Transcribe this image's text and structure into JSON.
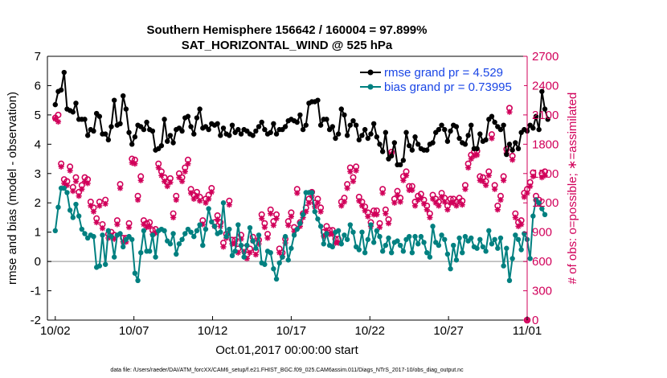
{
  "chart_data": {
    "type": "line",
    "title_line1": "Southern Hemisphere 156642 / 160004 = 97.899%",
    "title_line2": "SAT_HORIZONTAL_WIND @ 525 hPa",
    "xlabel": "Oct.01,2017 00:00:00 start",
    "ylabel": "rmse and bias (model - observation)",
    "y2label": "# of obs: o=possible; ∗=assimilated",
    "xlim": [
      0.5,
      31
    ],
    "ylim": [
      -2,
      7
    ],
    "y2lim": [
      0,
      2700
    ],
    "xticks": [
      {
        "pos": 1,
        "label": "10/02"
      },
      {
        "pos": 6,
        "label": "10/07"
      },
      {
        "pos": 11,
        "label": "10/12"
      },
      {
        "pos": 16,
        "label": "10/17"
      },
      {
        "pos": 21,
        "label": "10/22"
      },
      {
        "pos": 26,
        "label": "10/27"
      },
      {
        "pos": 31,
        "label": "11/01"
      }
    ],
    "yticks": [
      "-2",
      "-1",
      "0",
      "1",
      "2",
      "3",
      "4",
      "5",
      "6",
      "7"
    ],
    "y2ticks": [
      "0",
      "300",
      "600",
      "900",
      "1200",
      "1500",
      "1800",
      "2100",
      "2400",
      "2700"
    ],
    "zero_line": 0,
    "colors": {
      "rmse": "#000000",
      "bias": "#008080",
      "obs": "#d1005a",
      "legend_text": "#1a46e6"
    },
    "legend": {
      "position": "top-right",
      "entries": [
        "rmse grand pr = 4.529",
        "bias grand pr = 0.73995"
      ]
    },
    "footnote": "data file: /Users/raeder/DAI/ATM_forcXX/CAM6_setup/f.e21.FHIST_BGC.f09_025.CAM6assim.011/Diags_NTrS_2017-10/obs_diag_output.nc",
    "series": [
      {
        "name": "rmse",
        "values": [
          5.35,
          5.8,
          5.85,
          6.45,
          5.2,
          5.15,
          5.1,
          5.4,
          4.85,
          4.85,
          4.85,
          4.3,
          4.5,
          4.45,
          5.05,
          4.95,
          4.35,
          4.35,
          4.15,
          4.6,
          5.5,
          4.65,
          4.7,
          5.65,
          5.2,
          4.4,
          4.0,
          4.25,
          4.65,
          4.6,
          4.5,
          4.75,
          4.5,
          4.45,
          3.8,
          3.85,
          3.95,
          4.85,
          4.1,
          4.3,
          4.05,
          4.5,
          4.55,
          4.45,
          4.9,
          4.95,
          4.6,
          4.35,
          4.9,
          5.2,
          4.55,
          4.6,
          4.5,
          4.7,
          4.65,
          4.7,
          4.3,
          4.55,
          4.35,
          4.3,
          4.65,
          4.4,
          4.5,
          4.35,
          4.5,
          4.45,
          4.35,
          4.3,
          4.45,
          4.6,
          4.75,
          4.5,
          4.35,
          4.4,
          4.7,
          4.35,
          4.5,
          4.5,
          4.6,
          4.8,
          4.85,
          4.8,
          4.75,
          5.0,
          4.5,
          4.65,
          5.4,
          5.45,
          5.45,
          5.5,
          4.65,
          4.85,
          4.85,
          4.5,
          4.6,
          4.2,
          4.35,
          5.2,
          5.0,
          4.3,
          4.65,
          4.8,
          4.65,
          4.15,
          4.3,
          4.5,
          4.2,
          4.35,
          4.7,
          4.25,
          4.0,
          3.75,
          4.4,
          3.5,
          3.6,
          4.05,
          3.3,
          3.3,
          3.45,
          4.4,
          3.95,
          3.8,
          4.25,
          4.0,
          3.85,
          3.8,
          3.8,
          4.0,
          4.05,
          4.4,
          4.5,
          4.65,
          4.5,
          4.1,
          4.45,
          4.65,
          4.6,
          4.2,
          4.05,
          4.0,
          4.3,
          4.65,
          3.85,
          3.85,
          4.35,
          4.1,
          4.15,
          4.85,
          4.95,
          4.75,
          4.6,
          4.5,
          4.65,
          3.65,
          4.0,
          3.8,
          4.05,
          3.85,
          4.4,
          4.5,
          4.45,
          4.65,
          4.55,
          4.95,
          4.5,
          5.8,
          5.2,
          4.85
        ]
      },
      {
        "name": "bias",
        "values": [
          1.05,
          1.85,
          2.5,
          2.5,
          2.35,
          1.75,
          1.5,
          1.95,
          1.55,
          1.1,
          0.95,
          0.8,
          0.9,
          0.85,
          -0.2,
          -0.15,
          0.9,
          -0.1,
          1.05,
          0.85,
          0.15,
          0.9,
          0.95,
          0.5,
          0.75,
          0.85,
          0.75,
          -0.4,
          -0.65,
          0.3,
          1.05,
          0.35,
          0.35,
          0.9,
          0.15,
          1.05,
          1.1,
          1.05,
          0.7,
          0.6,
          0.95,
          0.25,
          0.6,
          0.75,
          0.95,
          1.1,
          1.0,
          0.85,
          1.05,
          1.25,
          0.55,
          1.1,
          1.8,
          1.35,
          1.2,
          0.95,
          1.0,
          2.0,
          0.85,
          1.1,
          0.2,
          0.35,
          1.25,
          0.55,
          0.15,
          0.55,
          1.15,
          0.7,
          0.45,
          0.9,
          -0.05,
          -0.1,
          0.35,
          0.3,
          -0.25,
          -0.6,
          -0.05,
          0.15,
          0.85,
          0.05,
          0.45,
          0.9,
          1.1,
          1.3,
          1.6,
          2.35,
          2.35,
          2.35,
          1.7,
          1.45,
          1.2,
          0.6,
          0.95,
          0.55,
          0.5,
          1.0,
          1.05,
          0.6,
          0.9,
          0.75,
          1.25,
          1.0,
          0.5,
          0.4,
          1.0,
          0.3,
          0.75,
          1.25,
          0.65,
          1.05,
          0.85,
          0.35,
          0.55,
          0.8,
          0.3,
          0.65,
          0.7,
          0.55,
          0.35,
          0.75,
          0.85,
          0.3,
          0.85,
          0.6,
          0.85,
          0.65,
          0.3,
          0.15,
          1.2,
          0.65,
          0.55,
          0.9,
          0.75,
          0.25,
          -0.25,
          0.55,
          0.05,
          0.8,
          0.3,
          0.85,
          0.7,
          0.8,
          0.5,
          0.45,
          0.75,
          0.5,
          0.35,
          1.05,
          0.6,
          0.75,
          0.45,
          0.8,
          -0.15,
          0.45,
          -0.65,
          0.1,
          0.9,
          0.75,
          0.4,
          0.95,
          0.75,
          0.1,
          1.55,
          2.1,
          2.0,
          1.8,
          1.6
        ]
      },
      {
        "name": "possible",
        "values": [
          2070,
          2100,
          1600,
          1440,
          1420,
          1570,
          1360,
          1460,
          1310,
          1380,
          1460,
          1440,
          1210,
          1150,
          1040,
          1210,
          980,
          1230,
          880,
          900,
          870,
          1020,
          1390,
          840,
          840,
          990,
          1650,
          1640,
          1270,
          1470,
          1020,
          990,
          1000,
          920,
          930,
          1600,
          1520,
          1460,
          1410,
          1450,
          1090,
          1270,
          1500,
          1460,
          1560,
          1640,
          1340,
          1280,
          1310,
          1260,
          1020,
          1240,
          1280,
          1350,
          1000,
          1070,
          1000,
          790,
          880,
          1220,
          820,
          820,
          730,
          870,
          740,
          670,
          730,
          850,
          710,
          820,
          1080,
          990,
          880,
          1130,
          1010,
          1080,
          730,
          690,
          830,
          1010,
          1100,
          950,
          1340,
          1000,
          1090,
          1150,
          1240,
          1310,
          1200,
          1240,
          1150,
          900,
          960,
          920,
          920,
          830,
          830,
          1210,
          1250,
          1390,
          1560,
          1460,
          1570,
          1260,
          1210,
          1160,
          1100,
          1000,
          1120,
          1120,
          990,
          1340,
          1130,
          1030,
          1720,
          1240,
          1320,
          1250,
          1470,
          1520,
          1370,
          1370,
          1210,
          1270,
          1290,
          1230,
          1170,
          1090,
          1280,
          1240,
          1210,
          1300,
          1250,
          1170,
          1240,
          1240,
          1210,
          1250,
          1220,
          1380,
          1600,
          1690,
          1720,
          1730,
          1470,
          1460,
          1420,
          1520,
          1900,
          1380,
          1170,
          1270,
          1470,
          1750,
          2170,
          1680,
          1090,
          1000,
          1020,
          1300,
          1340,
          1410,
          1510,
          1270,
          1230,
          1500,
          1520
        ]
      },
      {
        "name": "assimilated",
        "values": [
          2060,
          2030,
          1570,
          1400,
          1380,
          1530,
          1320,
          1420,
          1270,
          1340,
          1420,
          1400,
          1170,
          1110,
          1000,
          1170,
          940,
          1190,
          840,
          860,
          830,
          980,
          1350,
          800,
          800,
          950,
          1610,
          1600,
          1230,
          1430,
          980,
          950,
          960,
          880,
          890,
          1560,
          1480,
          1420,
          1370,
          1410,
          1050,
          1230,
          1460,
          1420,
          1520,
          1600,
          1300,
          1240,
          1270,
          1220,
          980,
          1200,
          1240,
          1310,
          960,
          1030,
          960,
          750,
          840,
          1180,
          780,
          780,
          690,
          830,
          700,
          630,
          690,
          810,
          670,
          780,
          1040,
          950,
          840,
          1090,
          970,
          1040,
          690,
          650,
          790,
          970,
          1060,
          910,
          1300,
          960,
          1050,
          1110,
          1200,
          1270,
          1160,
          1200,
          1110,
          860,
          920,
          880,
          880,
          790,
          790,
          1170,
          1210,
          1350,
          1520,
          1420,
          1530,
          1220,
          1170,
          1120,
          1060,
          960,
          1080,
          1080,
          950,
          1300,
          1090,
          990,
          1700,
          1200,
          1280,
          1210,
          1430,
          1480,
          1330,
          1330,
          1170,
          1230,
          1250,
          1190,
          1130,
          1050,
          1240,
          1200,
          1170,
          1260,
          1210,
          1130,
          1200,
          1200,
          1170,
          1210,
          1180,
          1340,
          1560,
          1650,
          1680,
          1690,
          1430,
          1420,
          1380,
          1480,
          1860,
          1340,
          1130,
          1230,
          1430,
          1710,
          2130,
          1640,
          1050,
          960,
          980,
          1260,
          1300,
          1370,
          1470,
          1230,
          1190,
          1460,
          1480
        ]
      }
    ],
    "end_point": {
      "name": "possible",
      "x": 31,
      "value": 0
    }
  }
}
